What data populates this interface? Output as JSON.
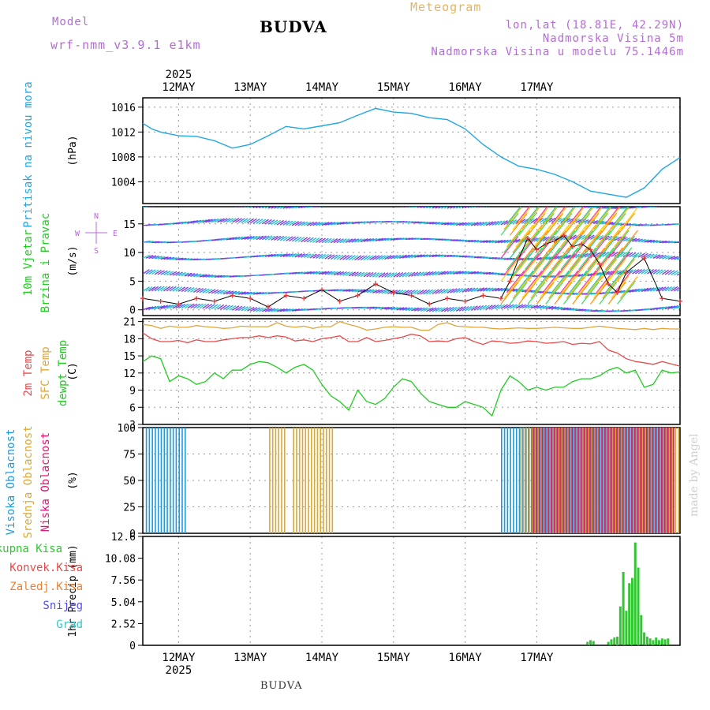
{
  "header": {
    "model_label": "Model",
    "model_name": "wrf-nmm_v3.9.1 e1km",
    "station": "BUDVA",
    "product": "Meteogram",
    "coords": "lon,lat (18.81E, 42.29N)",
    "elevation": "Nadmorska Visina 5m",
    "model_elevation": "Nadmorska Visina u modelu 75.1446m"
  },
  "footer": {
    "station": "BUDVA",
    "credit": "made by Angel"
  },
  "colors": {
    "pressure": "#1ea6e6",
    "wind_speed": "#e83c3c",
    "temp2m": "#e84a4a",
    "sfc_temp": "#e0a53a",
    "dewpoint": "#20cc20",
    "cloud_high": "#1e9be0",
    "cloud_mid": "#daa838",
    "cloud_low": "#e0186e",
    "precip_total": "#33c633",
    "precip_conv": "#e84a4a",
    "precip_strat": "#f07f30",
    "snow": "#5050e8",
    "hail": "#30c8c8",
    "axis_label": "#000000"
  },
  "chart_data": [
    {
      "type": "line",
      "panel": "pressure",
      "title": "Pritisak na nivou mora",
      "ylabel": "(hPa)",
      "ylim": [
        1000.5,
        1017.5
      ],
      "yticks": [
        "1004",
        "1008",
        "1012",
        "1016"
      ],
      "x_hours": [
        0,
        3,
        6,
        12,
        18,
        24,
        30,
        36,
        42,
        48,
        54,
        60,
        66,
        72,
        78,
        84,
        90,
        96,
        102,
        108,
        114,
        120,
        126,
        132,
        138,
        144,
        150,
        156,
        162,
        168,
        174,
        180
      ],
      "series": [
        {
          "name": "Pritisak na nivou mora",
          "values": [
            1013.4,
            1012.5,
            1012.0,
            1011.4,
            1011.3,
            1010.6,
            1009.4,
            1010.0,
            1011.4,
            1012.9,
            1012.5,
            1013.0,
            1013.5,
            1014.7,
            1015.8,
            1015.2,
            1015.0,
            1014.3,
            1014.0,
            1012.5,
            1010.0,
            1008.0,
            1006.5,
            1006.0,
            1005.2,
            1004.0,
            1002.5,
            1002.0,
            1001.5,
            1003.0,
            1006.0,
            1007.9
          ]
        }
      ]
    },
    {
      "type": "line",
      "panel": "wind",
      "title": "10m Vjetar Brzina i Pravac",
      "ylabel": "(m/s)",
      "ylim": [
        -1,
        18
      ],
      "yticks": [
        "0",
        "5",
        "10",
        "15"
      ],
      "compass": {
        "n": "N",
        "s": "S",
        "e": "E",
        "w": "W"
      },
      "x_hours": [
        0,
        6,
        12,
        18,
        24,
        30,
        36,
        42,
        48,
        54,
        60,
        66,
        72,
        78,
        84,
        90,
        96,
        102,
        108,
        114,
        120,
        123,
        126,
        129,
        132,
        135,
        138,
        141,
        144,
        147,
        150,
        153,
        156,
        159,
        162,
        168,
        174,
        180
      ],
      "series": [
        {
          "name": "Brzina",
          "values": [
            2.0,
            1.5,
            1.0,
            2.0,
            1.5,
            2.5,
            2.0,
            0.5,
            2.5,
            2.0,
            3.5,
            1.5,
            2.5,
            4.5,
            3.0,
            2.5,
            1.0,
            2.0,
            1.5,
            2.5,
            2.0,
            5.0,
            9.0,
            12.5,
            10.5,
            11.5,
            12.0,
            13.0,
            11.0,
            11.5,
            10.5,
            8.0,
            4.5,
            3.0,
            6.5,
            9.0,
            2.0,
            1.5
          ]
        }
      ]
    },
    {
      "type": "line",
      "panel": "temperature",
      "ylabel": "(C)",
      "ylim": [
        3,
        21.5
      ],
      "yticks": [
        "3",
        "6",
        "9",
        "12",
        "15",
        "18",
        "21"
      ],
      "x_hours": [
        0,
        3,
        6,
        9,
        12,
        15,
        18,
        21,
        24,
        27,
        30,
        33,
        36,
        39,
        42,
        45,
        48,
        51,
        54,
        57,
        60,
        63,
        66,
        69,
        72,
        75,
        78,
        81,
        84,
        87,
        90,
        93,
        96,
        99,
        102,
        105,
        108,
        111,
        114,
        117,
        120,
        123,
        126,
        129,
        132,
        135,
        138,
        141,
        144,
        147,
        150,
        153,
        156,
        159,
        162,
        165,
        168,
        171,
        174,
        177,
        180
      ],
      "series": [
        {
          "name": "2m Temp",
          "values": [
            19.0,
            18.0,
            17.5,
            17.5,
            17.7,
            17.3,
            17.8,
            17.5,
            17.5,
            17.8,
            18.0,
            18.2,
            18.2,
            18.5,
            18.2,
            18.5,
            18.3,
            17.6,
            17.8,
            17.5,
            18.0,
            18.2,
            18.5,
            17.5,
            17.5,
            18.2,
            17.5,
            17.7,
            18.0,
            18.3,
            18.8,
            18.5,
            17.5,
            17.6,
            17.5,
            18.0,
            18.2,
            17.5,
            17.0,
            17.6,
            17.5,
            17.2,
            17.3,
            17.6,
            17.5,
            17.2,
            17.3,
            17.5,
            17.0,
            17.2,
            17.1,
            17.5,
            16.0,
            15.5,
            14.5,
            14.0,
            13.8,
            13.5,
            14.0,
            13.6,
            13.2
          ]
        },
        {
          "name": "SFC Temp",
          "values": [
            20.5,
            20.3,
            19.8,
            20.2,
            20.0,
            20.0,
            20.3,
            20.1,
            20.0,
            19.8,
            19.9,
            20.2,
            20.1,
            20.1,
            20.1,
            20.8,
            20.2,
            20.0,
            20.2,
            19.8,
            20.1,
            20.1,
            21.0,
            20.5,
            20.1,
            19.5,
            19.7,
            20.0,
            20.1,
            20.0,
            20.0,
            19.5,
            19.5,
            20.5,
            20.8,
            20.2,
            20.1,
            20.0,
            20.0,
            19.8,
            19.7,
            19.8,
            19.9,
            19.8,
            19.8,
            19.9,
            20.0,
            19.9,
            19.8,
            19.8,
            20.0,
            20.2,
            20.0,
            19.8,
            19.7,
            19.6,
            19.8,
            19.6,
            19.8,
            19.7,
            19.7
          ]
        },
        {
          "name": "dewpt Temp",
          "values": [
            14.0,
            15.0,
            14.5,
            10.5,
            11.5,
            11.0,
            10.0,
            10.5,
            12.0,
            11.0,
            12.5,
            12.5,
            13.5,
            14.0,
            13.8,
            13.0,
            12.0,
            13.0,
            13.5,
            12.5,
            10.0,
            8.0,
            7.0,
            5.5,
            9.0,
            7.0,
            6.5,
            7.5,
            9.5,
            11.0,
            10.5,
            8.5,
            7.0,
            6.5,
            6.0,
            6.0,
            7.0,
            6.5,
            6.0,
            4.5,
            9.0,
            11.5,
            10.5,
            9.0,
            9.5,
            9.0,
            9.5,
            9.5,
            10.5,
            11.0,
            11.0,
            11.5,
            12.5,
            13.0,
            12.0,
            12.5,
            9.5,
            10.0,
            12.5,
            12.0,
            12.2
          ]
        }
      ]
    },
    {
      "type": "bar",
      "panel": "cloud",
      "ylabel": "(%)",
      "ylim": [
        0,
        100
      ],
      "yticks": [
        "0",
        "25",
        "50",
        "75",
        "100"
      ],
      "series": [
        {
          "name": "Visoka Oblacnost",
          "segments": [
            {
              "from": 1,
              "to": 15,
              "value": 100
            },
            {
              "from": 120,
              "to": 126,
              "value": 100
            },
            {
              "from": 126,
              "to": 178,
              "value": 100
            }
          ]
        },
        {
          "name": "Srednja Oblacnost",
          "segments": [
            {
              "from": 42,
              "to": 48,
              "value": 100
            },
            {
              "from": 50,
              "to": 56,
              "value": 100
            },
            {
              "from": 56,
              "to": 64,
              "value": 100
            },
            {
              "from": 126,
              "to": 180,
              "value": 100
            }
          ]
        },
        {
          "name": "Niska Oblacnost",
          "segments": [
            {
              "from": 130,
              "to": 178,
              "value": 100
            }
          ]
        }
      ]
    },
    {
      "type": "bar",
      "panel": "precip",
      "ylabel": "1hr Precip (mm)",
      "ylim": [
        0,
        12.6
      ],
      "yticks": [
        "0",
        "2.52",
        "5.04",
        "7.56",
        "10.08",
        "12.6"
      ],
      "series": [
        {
          "name": "Ukupna Kisa",
          "bars": [
            {
              "hour": 149,
              "value": 0.4
            },
            {
              "hour": 150,
              "value": 0.6
            },
            {
              "hour": 151,
              "value": 0.5
            },
            {
              "hour": 156,
              "value": 0.4
            },
            {
              "hour": 157,
              "value": 0.7
            },
            {
              "hour": 158,
              "value": 0.9
            },
            {
              "hour": 159,
              "value": 1.0
            },
            {
              "hour": 160,
              "value": 4.5
            },
            {
              "hour": 161,
              "value": 8.5
            },
            {
              "hour": 162,
              "value": 4.0
            },
            {
              "hour": 163,
              "value": 7.2
            },
            {
              "hour": 164,
              "value": 7.8
            },
            {
              "hour": 165,
              "value": 11.9
            },
            {
              "hour": 166,
              "value": 9.0
            },
            {
              "hour": 167,
              "value": 3.5
            },
            {
              "hour": 168,
              "value": 1.5
            },
            {
              "hour": 169,
              "value": 1.0
            },
            {
              "hour": 170,
              "value": 0.8
            },
            {
              "hour": 171,
              "value": 0.6
            },
            {
              "hour": 172,
              "value": 0.9
            },
            {
              "hour": 173,
              "value": 0.6
            },
            {
              "hour": 174,
              "value": 0.8
            },
            {
              "hour": 175,
              "value": 0.7
            },
            {
              "hour": 176,
              "value": 0.8
            }
          ]
        },
        {
          "name": "Konvek.Kisa",
          "bars": []
        },
        {
          "name": "Zaledj.Kisa",
          "bars": []
        },
        {
          "name": "Snijeg",
          "bars": []
        },
        {
          "name": "Grad",
          "bars": []
        }
      ]
    }
  ],
  "panel_labels": {
    "pressure": [
      "Pritisak na nivou mora"
    ],
    "wind": [
      "10m Vjetar",
      "Brzina i Pravac"
    ],
    "temperature": [
      "2m Temp",
      "SFC Temp",
      "dewpt Temp"
    ],
    "cloud": [
      "Visoka Oblacnost",
      "Srednja Oblacnost",
      "Niska Oblacnost"
    ]
  },
  "x_axis": {
    "days": [
      "12MAY",
      "13MAY",
      "14MAY",
      "15MAY",
      "16MAY",
      "17MAY"
    ],
    "year": "2025"
  }
}
